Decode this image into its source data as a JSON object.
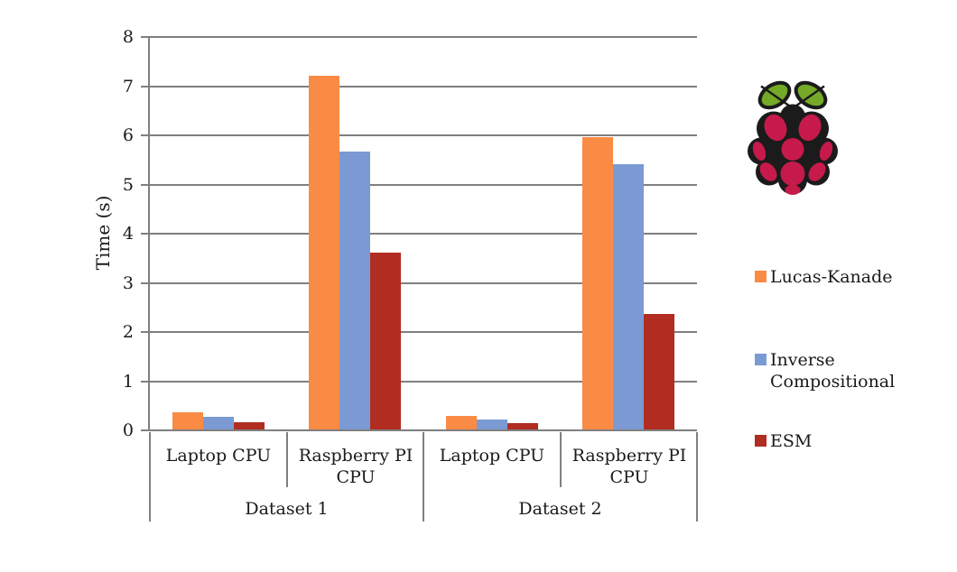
{
  "colors": {
    "grid": "#7f7f7f",
    "text": "#1a1a1a",
    "background": "#ffffff"
  },
  "chart_data": {
    "type": "bar",
    "title": "",
    "xlabel": "",
    "ylabel": "Time (s)",
    "ylim": [
      0,
      8
    ],
    "yticks": [
      0,
      1,
      2,
      3,
      4,
      5,
      6,
      7,
      8
    ],
    "grid": true,
    "legend_position": "right",
    "categories": [
      "Laptop CPU",
      "Raspberry PI CPU",
      "Laptop CPU",
      "Raspberry PI CPU"
    ],
    "group_labels": [
      "Dataset 1",
      "Dataset 2"
    ],
    "series": [
      {
        "name": "Lucas-Kanade",
        "color": "#FA8B45",
        "values": [
          0.35,
          7.2,
          0.27,
          5.95
        ]
      },
      {
        "name": "Inverse Compositional",
        "color": "#7B9AD4",
        "values": [
          0.25,
          5.65,
          0.2,
          5.4
        ]
      },
      {
        "name": "ESM",
        "color": "#B12D21",
        "values": [
          0.15,
          3.6,
          0.12,
          2.35
        ]
      }
    ]
  },
  "legend": {
    "items": [
      {
        "label": "Lucas-Kanade",
        "color": "#FA8B45"
      },
      {
        "label": "Inverse Compositional",
        "color": "#7B9AD4"
      },
      {
        "label": "ESM",
        "color": "#B12D21"
      }
    ]
  },
  "logo": {
    "name": "Raspberry Pi logo",
    "berry_color": "#C51A4A",
    "leaf_color": "#75A928",
    "outline_color": "#1b1b1b"
  }
}
